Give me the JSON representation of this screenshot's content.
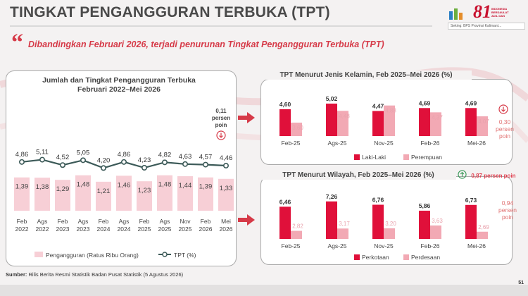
{
  "header": {
    "title": "TINGKAT PENGANGGURAN TERBUKA (TPT)",
    "logo_number": "81",
    "logo_tagline": "INDONESIA BERDAULAT ADIL DAN",
    "logo_caption": "Seking: BPS Provinsi Kalimant..."
  },
  "highlight": {
    "quote_mark": "“",
    "text": "Dibandingkan Februari 2026, terjadi penurunan Tingkat Pengangguran Terbuka (TPT)"
  },
  "left_panel": {
    "title_line1": "Jumlah dan Tingkat Pengangguran Terbuka",
    "title_line2": "Februari 2022–Mei 2026",
    "note_line1": "0,11",
    "note_line2": "persen",
    "note_line3": "poin"
  },
  "gender_panel": {
    "title": "TPT Menurut Jenis Kelamin, Feb 2025–Mei 2026 (%)",
    "note_line1": "0,30",
    "note_line2": "persen",
    "note_line3": "poin"
  },
  "region_panel": {
    "title": "TPT Menurut Wilayah, Feb 2025–Mei 2026 (%)",
    "note_top": "0,87 persen poin",
    "note_line1": "0,94",
    "note_line2": "persen",
    "note_line3": "poin"
  },
  "footer": {
    "source_label": "Sumber:",
    "source_text": " Rilis Berita Resmi Statistik Badan Pusat Statistik (5 Agustus 2026)",
    "page_number": "51"
  },
  "colors": {
    "red": "#e0103a",
    "pink": "#f2a9b4",
    "light_pink": "#f7cfd6",
    "line": "#3c5a58",
    "accent": "#d63a48"
  },
  "chart_data": [
    {
      "id": "trend",
      "type": "bar",
      "title": "Jumlah dan Tingkat Pengangguran Terbuka Februari 2022–Mei 2026",
      "categories": [
        [
          "Feb",
          "2022"
        ],
        [
          "Ags",
          "2022"
        ],
        [
          "Feb",
          "2023"
        ],
        [
          "Ags",
          "2023"
        ],
        [
          "Feb",
          "2024"
        ],
        [
          "Ags",
          "2024"
        ],
        [
          "Feb",
          "2025"
        ],
        [
          "Ags",
          "2025"
        ],
        [
          "Nov",
          "2025"
        ],
        [
          "Feb",
          "2026"
        ],
        [
          "Mei",
          "2026"
        ]
      ],
      "series": [
        {
          "name": "Pengangguran (Ratus Ribu Orang)",
          "type": "bar",
          "values": [
            1.39,
            1.38,
            1.29,
            1.48,
            1.21,
            1.46,
            1.23,
            1.48,
            1.44,
            1.39,
            1.33
          ],
          "labels": [
            "1,39",
            "1,38",
            "1,29",
            "1,48",
            "1,21",
            "1,46",
            "1,23",
            "1,48",
            "1,44",
            "1,39",
            "1,33"
          ]
        },
        {
          "name": "TPT (%)",
          "type": "line",
          "values": [
            4.86,
            5.11,
            4.52,
            5.05,
            4.2,
            4.86,
            4.23,
            4.82,
            4.63,
            4.57,
            4.46
          ],
          "labels": [
            "4,86",
            "5,11",
            "4,52",
            "5,05",
            "4,20",
            "4,86",
            "4,23",
            "4,82",
            "4,63",
            "4,57",
            "4,46"
          ]
        }
      ]
    },
    {
      "id": "gender",
      "type": "bar",
      "title": "TPT Menurut Jenis Kelamin, Feb 2025–Mei 2026 (%)",
      "categories": [
        "Feb-25",
        "Ags-25",
        "Nov-25",
        "Feb-26",
        "Mei-26"
      ],
      "series": [
        {
          "name": "Laki-Laki",
          "values": [
            4.6,
            5.02,
            4.47,
            4.69,
            4.69
          ],
          "labels": [
            "4,60",
            "5,02",
            "4,47",
            "4,69",
            "4,69"
          ]
        },
        {
          "name": "Perempuan",
          "values": [
            3.6,
            4.48,
            4.88,
            4.37,
            4.07
          ],
          "labels": [
            "3,60",
            "4,48",
            "4,88",
            "4,37",
            "4,07"
          ]
        }
      ]
    },
    {
      "id": "region",
      "type": "bar",
      "title": "TPT Menurut Wilayah, Feb 2025–Mei 2026 (%)",
      "categories": [
        "Feb-25",
        "Ags-25",
        "Nov-25",
        "Feb-26",
        "Mei-26"
      ],
      "series": [
        {
          "name": "Perkotaan",
          "values": [
            6.46,
            7.26,
            6.76,
            5.86,
            6.73
          ],
          "labels": [
            "6,46",
            "7,26",
            "6,76",
            "5,86",
            "6,73"
          ]
        },
        {
          "name": "Perdesaan",
          "values": [
            2.82,
            3.17,
            3.2,
            3.63,
            2.69
          ],
          "labels": [
            "2,82",
            "3,17",
            "3,20",
            "3,63",
            "2,69"
          ]
        }
      ]
    }
  ]
}
